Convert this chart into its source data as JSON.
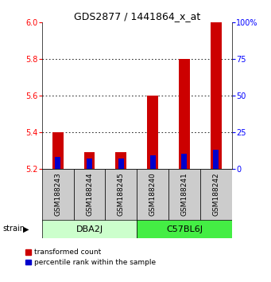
{
  "title": "GDS2877 / 1441864_x_at",
  "samples": [
    "GSM188243",
    "GSM188244",
    "GSM188245",
    "GSM188240",
    "GSM188241",
    "GSM188242"
  ],
  "groups": [
    {
      "label": "DBA2J",
      "indices": [
        0,
        1,
        2
      ],
      "color": "#ccffcc"
    },
    {
      "label": "C57BL6J",
      "indices": [
        3,
        4,
        5
      ],
      "color": "#44ee44"
    }
  ],
  "baseline": 5.2,
  "red_tops": [
    5.4,
    5.295,
    5.295,
    5.6,
    5.8,
    6.0
  ],
  "blue_tops": [
    5.265,
    5.258,
    5.258,
    5.275,
    5.285,
    5.305
  ],
  "red_color": "#cc0000",
  "blue_color": "#0000cc",
  "ylim_left": [
    5.2,
    6.0
  ],
  "yticks_left": [
    5.2,
    5.4,
    5.6,
    5.8,
    6.0
  ],
  "ylim_right": [
    0,
    100
  ],
  "yticks_right": [
    0,
    25,
    50,
    75,
    100
  ],
  "yticklabels_right": [
    "0",
    "25",
    "50",
    "75",
    "100%"
  ],
  "bar_width": 0.35,
  "grid_lines": [
    5.4,
    5.6,
    5.8
  ]
}
